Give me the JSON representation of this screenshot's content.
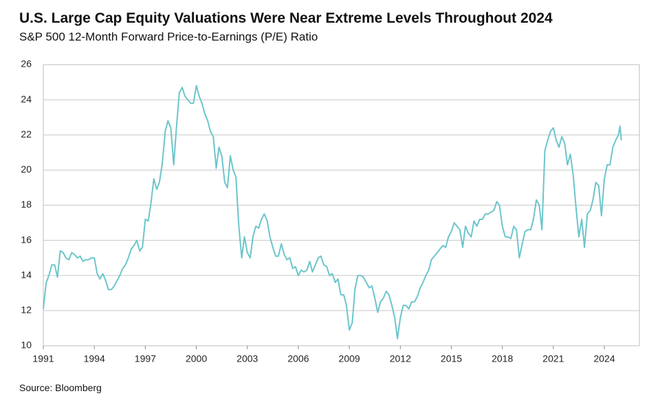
{
  "chart_data": {
    "type": "line",
    "title": "U.S. Large Cap Equity Valuations Were Near Extreme Levels Throughout 2024",
    "subtitle": "S&P 500 12-Month Forward Price-to-Earnings (P/E) Ratio",
    "source": "Source: Bloomberg",
    "color": "#6cc5cb",
    "grid": true,
    "xlim": [
      1991,
      2026.06
    ],
    "xticks": [
      1991,
      1994,
      1997,
      2000,
      2003,
      2006,
      2009,
      2012,
      2015,
      2018,
      2021,
      2024
    ],
    "ylim": [
      10,
      26
    ],
    "yticks": [
      10,
      12,
      14,
      16,
      18,
      20,
      22,
      24,
      26
    ],
    "x": [
      1991,
      1991.17,
      1991.33,
      1991.5,
      1991.67,
      1991.83,
      1992,
      1992.17,
      1992.33,
      1992.5,
      1992.67,
      1992.83,
      1993,
      1993.17,
      1993.33,
      1993.5,
      1993.67,
      1993.83,
      1994,
      1994.17,
      1994.33,
      1994.5,
      1994.67,
      1994.83,
      1995,
      1995.17,
      1995.33,
      1995.5,
      1995.67,
      1995.83,
      1996,
      1996.17,
      1996.33,
      1996.5,
      1996.67,
      1996.83,
      1997,
      1997.17,
      1997.33,
      1997.5,
      1997.67,
      1997.83,
      1998,
      1998.17,
      1998.33,
      1998.5,
      1998.67,
      1998.83,
      1999,
      1999.17,
      1999.33,
      1999.5,
      1999.67,
      1999.83,
      2000,
      2000.17,
      2000.33,
      2000.5,
      2000.67,
      2000.83,
      2001,
      2001.17,
      2001.33,
      2001.5,
      2001.67,
      2001.83,
      2002,
      2002.17,
      2002.33,
      2002.5,
      2002.67,
      2002.83,
      2003,
      2003.17,
      2003.33,
      2003.5,
      2003.67,
      2003.83,
      2004,
      2004.17,
      2004.33,
      2004.5,
      2004.67,
      2004.83,
      2005,
      2005.17,
      2005.33,
      2005.5,
      2005.67,
      2005.83,
      2006,
      2006.17,
      2006.33,
      2006.5,
      2006.67,
      2006.83,
      2007,
      2007.17,
      2007.33,
      2007.5,
      2007.67,
      2007.83,
      2008,
      2008.17,
      2008.33,
      2008.5,
      2008.67,
      2008.83,
      2009,
      2009.17,
      2009.33,
      2009.5,
      2009.67,
      2009.83,
      2010,
      2010.17,
      2010.33,
      2010.5,
      2010.67,
      2010.83,
      2011,
      2011.17,
      2011.33,
      2011.5,
      2011.67,
      2011.83,
      2012,
      2012.17,
      2012.33,
      2012.5,
      2012.67,
      2012.83,
      2013,
      2013.17,
      2013.33,
      2013.5,
      2013.67,
      2013.83,
      2014,
      2014.17,
      2014.33,
      2014.5,
      2014.67,
      2014.83,
      2015,
      2015.17,
      2015.33,
      2015.5,
      2015.67,
      2015.83,
      2016,
      2016.17,
      2016.33,
      2016.5,
      2016.67,
      2016.83,
      2017,
      2017.17,
      2017.33,
      2017.5,
      2017.67,
      2017.83,
      2018,
      2018.17,
      2018.33,
      2018.5,
      2018.67,
      2018.83,
      2019,
      2019.17,
      2019.33,
      2019.5,
      2019.67,
      2019.83,
      2020,
      2020.17,
      2020.33,
      2020.5,
      2020.67,
      2020.83,
      2021,
      2021.17,
      2021.33,
      2021.5,
      2021.67,
      2021.83,
      2022,
      2022.17,
      2022.33,
      2022.5,
      2022.67,
      2022.83,
      2023,
      2023.17,
      2023.33,
      2023.5,
      2023.67,
      2023.83,
      2024,
      2024.17,
      2024.33,
      2024.5,
      2024.67,
      2024.83,
      2024.92,
      2025
    ],
    "values": [
      12.1,
      13.6,
      14.0,
      14.6,
      14.6,
      13.9,
      15.4,
      15.3,
      15.0,
      14.9,
      15.3,
      15.2,
      15.0,
      15.1,
      14.8,
      14.9,
      14.9,
      15.0,
      15.0,
      14.1,
      13.8,
      14.1,
      13.7,
      13.2,
      13.2,
      13.4,
      13.7,
      14.0,
      14.4,
      14.6,
      15.0,
      15.5,
      15.7,
      16.0,
      15.4,
      15.6,
      17.2,
      17.1,
      18.1,
      19.5,
      18.9,
      19.3,
      20.4,
      22.2,
      22.8,
      22.4,
      20.3,
      22.4,
      24.4,
      24.7,
      24.2,
      24.0,
      23.8,
      23.8,
      24.8,
      24.2,
      23.8,
      23.2,
      22.8,
      22.2,
      21.9,
      20.1,
      21.3,
      20.8,
      19.3,
      19.0,
      20.8,
      20.0,
      19.6,
      16.8,
      15.0,
      16.2,
      15.3,
      15.0,
      16.2,
      16.8,
      16.7,
      17.2,
      17.5,
      17.1,
      16.2,
      15.6,
      15.1,
      15.1,
      15.8,
      15.2,
      14.9,
      15.0,
      14.4,
      14.5,
      14.0,
      14.3,
      14.2,
      14.3,
      14.8,
      14.2,
      14.6,
      15.0,
      15.1,
      14.6,
      14.5,
      14.0,
      14.1,
      13.6,
      13.8,
      12.9,
      12.9,
      12.3,
      10.9,
      11.3,
      13.2,
      14.0,
      14.0,
      13.9,
      13.6,
      13.3,
      13.4,
      12.7,
      11.9,
      12.5,
      12.7,
      13.1,
      12.9,
      12.3,
      11.6,
      10.4,
      11.6,
      12.3,
      12.3,
      12.1,
      12.5,
      12.5,
      12.8,
      13.3,
      13.6,
      14.0,
      14.3,
      14.9,
      15.1,
      15.3,
      15.5,
      15.7,
      15.6,
      16.2,
      16.5,
      17.0,
      16.8,
      16.6,
      15.6,
      16.8,
      16.4,
      16.2,
      17.1,
      16.8,
      17.2,
      17.2,
      17.5,
      17.5,
      17.6,
      17.7,
      18.2,
      18.0,
      16.8,
      16.2,
      16.2,
      16.1,
      16.8,
      16.6,
      15.0,
      15.8,
      16.5,
      16.6,
      16.6,
      17.2,
      18.3,
      18.0,
      16.6,
      21.1,
      21.7,
      22.2,
      22.4,
      21.7,
      21.3,
      21.9,
      21.5,
      20.3,
      20.9,
      19.7,
      17.9,
      16.2,
      17.2,
      15.6,
      17.5,
      17.7,
      18.3,
      19.3,
      19.1,
      17.4,
      19.5,
      20.3,
      20.3,
      21.3,
      21.7,
      22.0,
      22.5,
      21.7
    ]
  }
}
